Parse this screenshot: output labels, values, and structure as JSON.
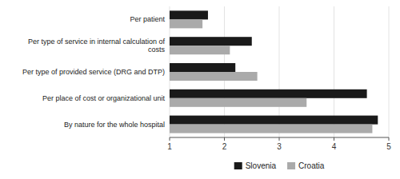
{
  "chart_data": {
    "type": "bar",
    "orientation": "horizontal",
    "categories": [
      "By nature for the whole hospital",
      "Per place of cost or organizational unit",
      "Per type of provided service (DRG and DTP)",
      "Per type of service in internal calculation of\ncosts",
      "Per patient"
    ],
    "series": [
      {
        "name": "Slovenia",
        "color": "#1a1a1a",
        "values": [
          4.8,
          4.6,
          2.2,
          2.5,
          1.7
        ]
      },
      {
        "name": "Croatia",
        "color": "#aaaaaa",
        "values": [
          4.7,
          3.5,
          2.6,
          2.1,
          1.6
        ]
      }
    ],
    "xlim": [
      1,
      5
    ],
    "xticks": [
      1,
      2,
      3,
      4,
      5
    ],
    "grid": true,
    "legend": "bottom"
  }
}
